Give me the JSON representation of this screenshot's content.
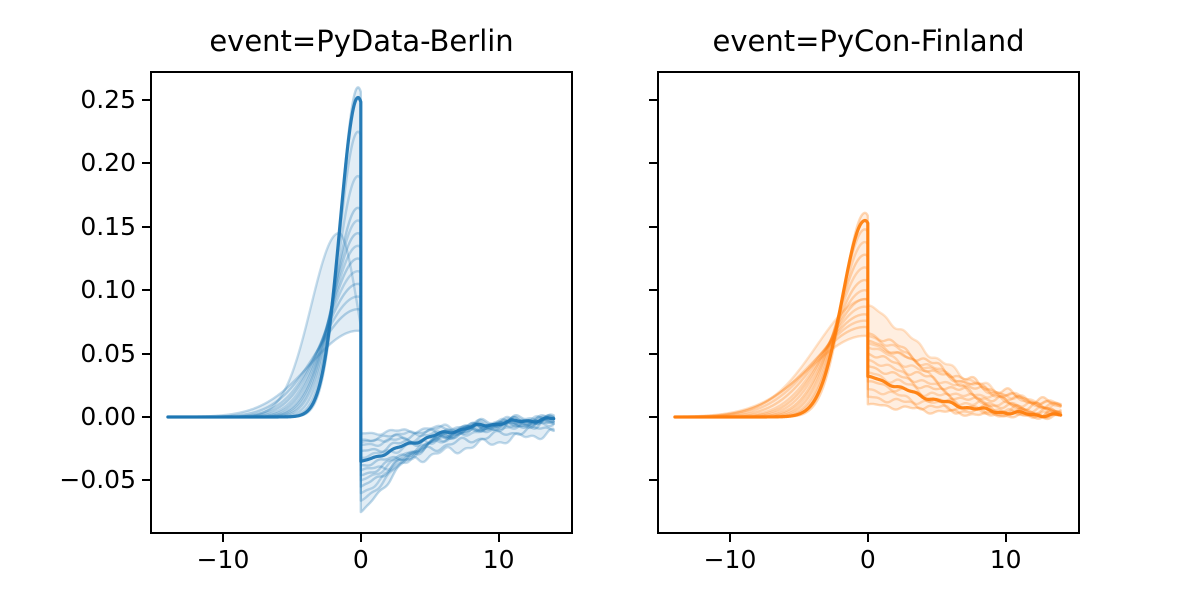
{
  "figure": {
    "background": "#ffffff"
  },
  "chart_data": {
    "type": "line",
    "shared_y": true,
    "grid": false,
    "legend": "none",
    "xlim": [
      -15.3,
      15.4
    ],
    "ylim": [
      -0.0923,
      0.2729
    ],
    "x_data_range": [
      -14,
      14
    ],
    "discontinuity_x": 0,
    "band_fill_opacity": 0.13,
    "panels": [
      {
        "title": "event=PyData-Berlin",
        "color": "#1f77b4",
        "xticks": [
          -10,
          0,
          10
        ],
        "xtick_labels": [
          "−10",
          "0",
          "10"
        ],
        "yticks": [
          -0.05,
          0.0,
          0.05,
          0.1,
          0.15,
          0.2,
          0.25
        ],
        "ytick_labels": [
          "−0.05",
          "0.00",
          "0.05",
          "0.10",
          "0.15",
          "0.20",
          "0.25"
        ],
        "show_ytick_labels": true,
        "series": [
          {
            "peak": 0.26,
            "width_left": 1.25,
            "drop": -0.075,
            "recovery": 4.0,
            "alpha": 0.3,
            "wiggle": 0.002,
            "phase": 0.5
          },
          {
            "peak": 0.252,
            "width_left": 1.3,
            "drop": -0.035,
            "recovery": 6.0,
            "alpha": 0.95,
            "lw": 3.2,
            "wiggle": 0.001,
            "phase": 1.2
          },
          {
            "peak": 0.225,
            "width_left": 1.4,
            "drop": -0.066,
            "recovery": 4.5,
            "alpha": 0.28,
            "wiggle": 0.002,
            "phase": 2.1
          },
          {
            "peak": 0.19,
            "width_left": 1.55,
            "drop": -0.06,
            "recovery": 5.0,
            "alpha": 0.26,
            "wiggle": 0.002,
            "phase": 3.0
          },
          {
            "peak": 0.165,
            "width_left": 1.7,
            "drop": -0.055,
            "recovery": 5.2,
            "alpha": 0.3,
            "wiggle": 0.0025,
            "phase": 0.9
          },
          {
            "peak": 0.155,
            "width_left": 1.8,
            "drop": -0.05,
            "recovery": 5.5,
            "alpha": 0.26,
            "wiggle": 0.002,
            "phase": 1.7
          },
          {
            "peak": 0.145,
            "width_left": 1.9,
            "drop": -0.046,
            "recovery": 6.0,
            "alpha": 0.3,
            "wiggle": 0.002,
            "phase": 2.6
          },
          {
            "peak": 0.135,
            "width_left": 2.0,
            "drop": -0.042,
            "recovery": 12.0,
            "alpha": 0.27,
            "wiggle": 0.0025,
            "phase": 0.3
          },
          {
            "peak": 0.125,
            "width_left": 2.15,
            "drop": -0.038,
            "recovery": 10.0,
            "alpha": 0.3,
            "wiggle": 0.002,
            "phase": 4.0
          },
          {
            "peak": 0.115,
            "width_left": 2.3,
            "drop": -0.032,
            "recovery": 8.0,
            "alpha": 0.26,
            "wiggle": 0.002,
            "phase": 5.0
          },
          {
            "peak": 0.105,
            "width_left": 2.5,
            "drop": -0.027,
            "recovery": 9.0,
            "alpha": 0.3,
            "wiggle": 0.0025,
            "phase": 1.4
          },
          {
            "peak": 0.095,
            "width_left": 2.7,
            "drop": -0.022,
            "recovery": 10.0,
            "alpha": 0.27,
            "wiggle": 0.002,
            "phase": 2.2
          },
          {
            "peak": 0.085,
            "width_left": 3.0,
            "drop": -0.018,
            "recovery": 11.0,
            "alpha": 0.3,
            "wiggle": 0.002,
            "phase": 3.3
          },
          {
            "peak": 0.145,
            "peak_x": -1.6,
            "width_left": 2.0,
            "width_right": 1.35,
            "drop": -0.02,
            "recovery": 7.0,
            "alpha": 0.25,
            "wiggle": 0.002,
            "phase": 0.8
          },
          {
            "peak": 0.068,
            "width_left": 3.5,
            "drop": -0.013,
            "recovery": 12.0,
            "alpha": 0.28,
            "wiggle": 0.0015,
            "phase": 1.9
          }
        ]
      },
      {
        "title": "event=PyCon-Finland",
        "color": "#ff7f0e",
        "xticks": [
          -10,
          0,
          10
        ],
        "xtick_labels": [
          "−10",
          "0",
          "10"
        ],
        "yticks": [
          -0.05,
          0.0,
          0.05,
          0.1,
          0.15,
          0.2,
          0.25
        ],
        "ytick_labels": [],
        "show_ytick_labels": false,
        "series": [
          {
            "peak": 0.161,
            "width_left": 1.55,
            "drop": 0.01,
            "recovery": 6.0,
            "alpha": 0.3,
            "wiggle": 0.0015,
            "phase": 0.4
          },
          {
            "peak": 0.155,
            "width_left": 1.65,
            "drop": 0.032,
            "recovery": 5.5,
            "alpha": 0.95,
            "lw": 3.2,
            "wiggle": 0.001,
            "phase": 1.1
          },
          {
            "peak": 0.148,
            "width_left": 1.75,
            "drop": 0.016,
            "recovery": 6.0,
            "alpha": 0.28,
            "wiggle": 0.002,
            "phase": 2.0
          },
          {
            "peak": 0.138,
            "width_left": 1.85,
            "drop": 0.022,
            "recovery": 6.0,
            "alpha": 0.26,
            "wiggle": 0.002,
            "phase": 2.9
          },
          {
            "peak": 0.128,
            "width_left": 2.0,
            "drop": 0.028,
            "recovery": 6.5,
            "alpha": 0.3,
            "wiggle": 0.002,
            "phase": 0.7
          },
          {
            "peak": 0.118,
            "width_left": 2.15,
            "drop": 0.035,
            "recovery": 6.5,
            "alpha": 0.26,
            "wiggle": 0.0025,
            "phase": 1.6
          },
          {
            "peak": 0.108,
            "width_left": 2.3,
            "drop": 0.04,
            "recovery": 7.0,
            "alpha": 0.3,
            "wiggle": 0.002,
            "phase": 2.5
          },
          {
            "peak": 0.1,
            "width_left": 2.5,
            "drop": 0.045,
            "recovery": 7.0,
            "alpha": 0.27,
            "wiggle": 0.002,
            "phase": 3.4
          },
          {
            "peak": 0.093,
            "width_left": 2.7,
            "drop": 0.05,
            "recovery": 7.5,
            "alpha": 0.3,
            "wiggle": 0.0025,
            "phase": 4.3
          },
          {
            "peak": 0.087,
            "width_left": 2.9,
            "drop": 0.055,
            "recovery": 7.5,
            "alpha": 0.26,
            "wiggle": 0.002,
            "phase": 5.2
          },
          {
            "peak": 0.081,
            "width_left": 3.2,
            "drop": 0.06,
            "recovery": 8.0,
            "alpha": 0.3,
            "wiggle": 0.002,
            "phase": 1.3
          },
          {
            "peak": 0.076,
            "width_left": 3.5,
            "drop": 0.064,
            "recovery": 8.0,
            "alpha": 0.27,
            "wiggle": 0.002,
            "phase": 2.4
          },
          {
            "peak": 0.071,
            "width_left": 3.8,
            "drop": 0.066,
            "recovery": 8.5,
            "alpha": 0.3,
            "wiggle": 0.0025,
            "phase": 3.1
          },
          {
            "peak": 0.093,
            "peak_x": -0.1,
            "width_left": 3.6,
            "width_right": 2.0,
            "drop": 0.088,
            "recovery": 7.0,
            "alpha": 0.22,
            "wiggle": 0.002,
            "phase": 0.6
          },
          {
            "peak": 0.064,
            "width_left": 4.0,
            "drop": 0.058,
            "recovery": 9.0,
            "alpha": 0.26,
            "wiggle": 0.0015,
            "phase": 1.8
          }
        ]
      }
    ]
  }
}
